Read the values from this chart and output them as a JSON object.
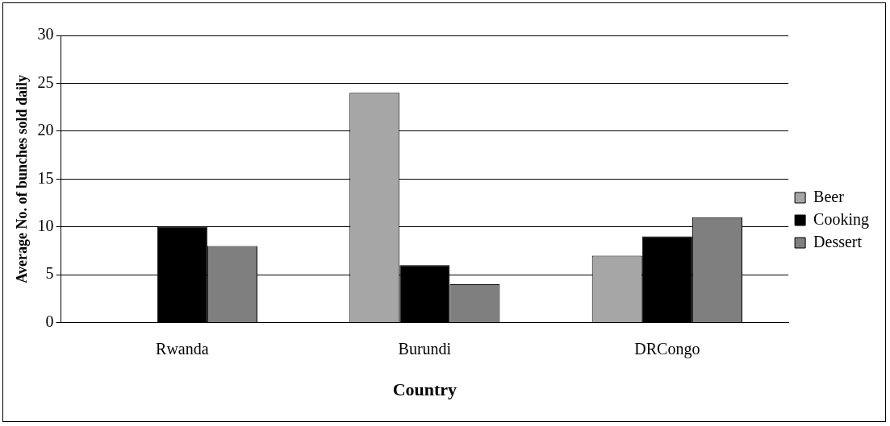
{
  "chart_data": {
    "type": "bar",
    "xlabel": "Country",
    "ylabel": "Average No. of bunches sold daily",
    "categories": [
      "Rwanda",
      "Burundi",
      "DRCongo"
    ],
    "series": [
      {
        "name": "Beer",
        "color": "#a6a6a6",
        "values": [
          0,
          24,
          7
        ]
      },
      {
        "name": "Cooking",
        "color": "#000000",
        "values": [
          10,
          6,
          9
        ]
      },
      {
        "name": "Dessert",
        "color": "#7f7f7f",
        "values": [
          8,
          4,
          11
        ]
      }
    ],
    "ylim": [
      0,
      30
    ],
    "yticks": [
      0,
      5,
      10,
      15,
      20,
      25,
      30
    ],
    "grid": "y",
    "legend": "right"
  }
}
